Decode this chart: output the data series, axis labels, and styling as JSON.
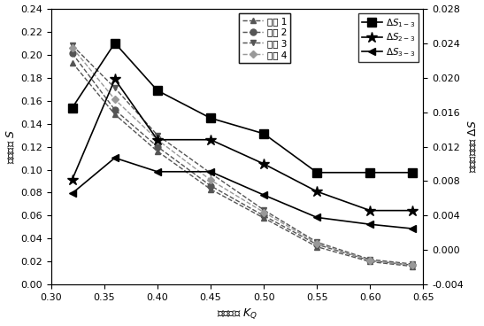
{
  "x": [
    0.32,
    0.36,
    0.4,
    0.45,
    0.5,
    0.55,
    0.6,
    0.64
  ],
  "fangan1": [
    0.193,
    0.148,
    0.116,
    0.083,
    0.058,
    0.033,
    0.02,
    0.016
  ],
  "fangan2": [
    0.201,
    0.152,
    0.12,
    0.086,
    0.06,
    0.035,
    0.021,
    0.017
  ],
  "fangan3": [
    0.208,
    0.171,
    0.13,
    0.097,
    0.065,
    0.037,
    0.022,
    0.018
  ],
  "fangan4": [
    0.206,
    0.161,
    0.126,
    0.091,
    0.063,
    0.036,
    0.021,
    0.017
  ],
  "delta_s13": [
    0.0165,
    0.024,
    0.0185,
    0.0153,
    0.0135,
    0.009,
    0.009,
    0.009
  ],
  "delta_s23": [
    0.0082,
    0.0198,
    0.0128,
    0.0128,
    0.01,
    0.0068,
    0.0046,
    0.0046
  ],
  "delta_s33": [
    0.0066,
    0.0107,
    0.0091,
    0.0091,
    0.0064,
    0.0038,
    0.003,
    0.0025
  ],
  "xlim": [
    0.3,
    0.65
  ],
  "ylim_left": [
    0.0,
    0.24
  ],
  "ylim_right": [
    -0.004,
    0.028
  ],
  "xticks": [
    0.3,
    0.35,
    0.4,
    0.45,
    0.5,
    0.55,
    0.6,
    0.65
  ],
  "yticks_left": [
    0.0,
    0.02,
    0.04,
    0.06,
    0.08,
    0.1,
    0.12,
    0.14,
    0.16,
    0.18,
    0.2,
    0.22,
    0.24
  ],
  "yticks_right": [
    -0.004,
    0.0,
    0.004,
    0.008,
    0.012,
    0.016,
    0.02,
    0.024,
    0.028
  ],
  "xlabel": "流量系数 $K_Q$",
  "ylabel_left": "动量参数 $S$",
  "ylabel_right": "动量参数差値 $\\Delta S$",
  "legend_fangan1": "方案 1",
  "legend_fangan2": "方案 2",
  "legend_fangan3": "方案 3",
  "legend_fangan4": "方案 4",
  "legend_ds13": "$\\Delta S_{1-3}$",
  "legend_ds23": "$\\Delta S_{2-3}$",
  "legend_ds33": "$\\Delta S_{3-3}$",
  "color_fangan123": "#555555",
  "color_fangan4": "#999999",
  "color_delta": "#000000"
}
